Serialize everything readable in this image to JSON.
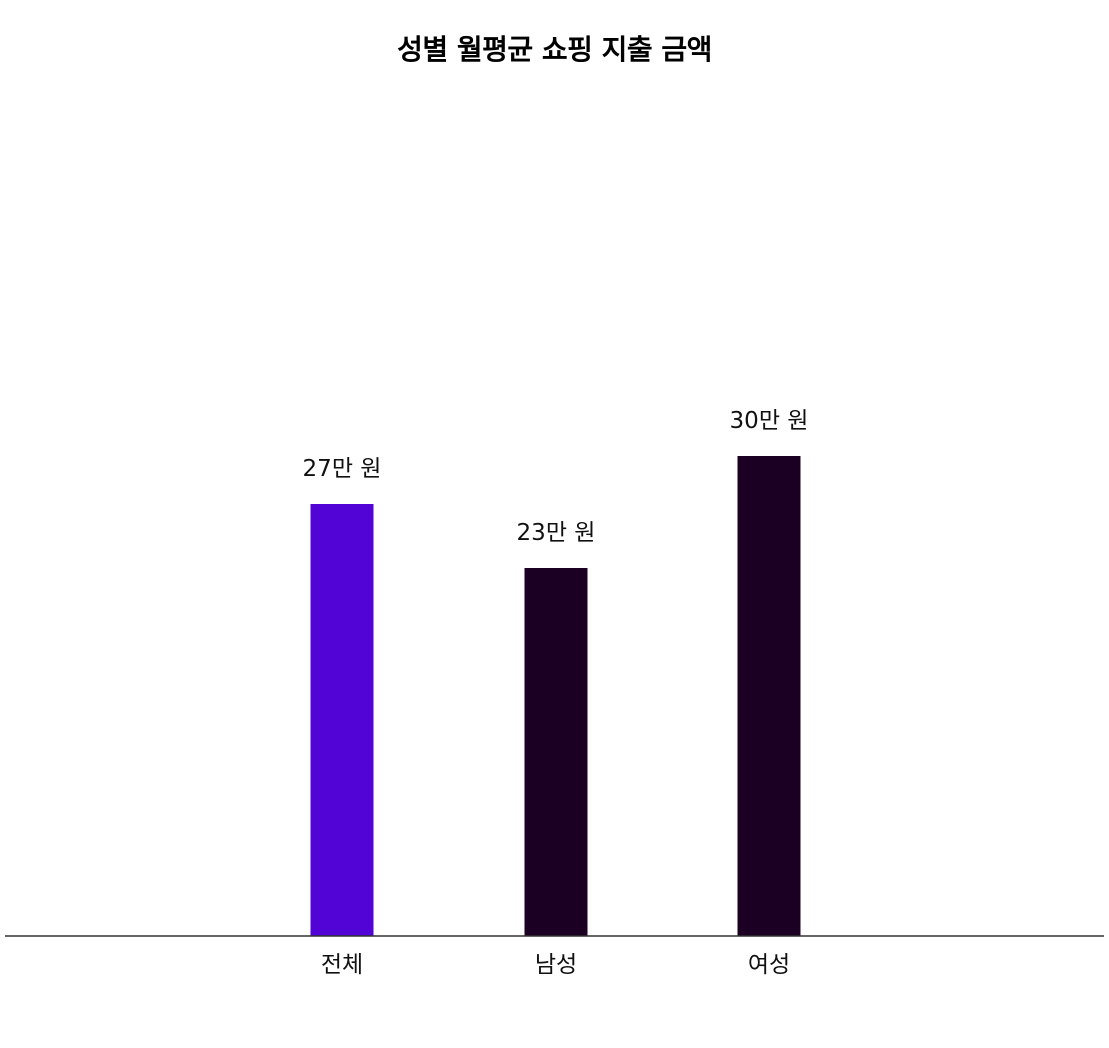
{
  "chart_data": {
    "type": "bar",
    "title": "성별 월평균 쇼핑 지출 금액",
    "xlabel": "",
    "ylabel": "",
    "categories": [
      "전체",
      "남성",
      "여성"
    ],
    "values": [
      27,
      23,
      30
    ],
    "data_labels": [
      "27만 원",
      "23만 원",
      "30만 원"
    ],
    "bar_colors": [
      "#5204d6",
      "#1c0024",
      "#1c0024"
    ],
    "ylim": [
      0,
      30
    ],
    "grid": false,
    "legend": "none"
  },
  "colors": {
    "baseline": "#333333",
    "background": "#ffffff"
  }
}
